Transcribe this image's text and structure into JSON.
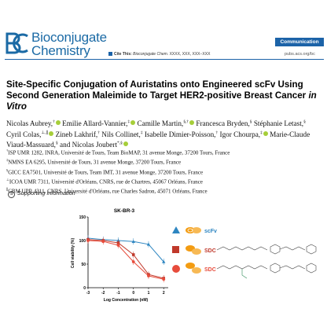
{
  "header": {
    "journal_line1": "Bioconjugate",
    "journal_line2": "Chemistry",
    "badge": "Communication",
    "cite_label": "Cite This:",
    "cite_journal": "Bioconjugate Chem.",
    "cite_ref": "XXXX, XXX, XXX−XXX",
    "site": "pubs.acs.org/bc"
  },
  "title": {
    "main": "Site-Specific Conjugation of Auristatins onto Engineered scFv Using Second Generation Maleimide to Target HER2-positive Breast Cancer",
    "italic_tail": "in Vitro"
  },
  "authors": [
    {
      "name": "Nicolas Aubrey,",
      "sup": "†",
      "orcid": true
    },
    {
      "name": "Emilie Allard-Vannier,",
      "sup": "‡",
      "orcid": true
    },
    {
      "name": "Camille Martin,",
      "sup": "§,†",
      "orcid": true
    },
    {
      "name": "Francesca Bryden,",
      "sup": "§",
      "orcid": false
    },
    {
      "name": "Stéphanie Letast,",
      "sup": "§",
      "orcid": false
    },
    {
      "name": "Cyril Colas,",
      "sup": "⊥,∥",
      "orcid": true
    },
    {
      "name": "Zineb Lakhrif,",
      "sup": "†",
      "orcid": false
    },
    {
      "name": "Nils Collinet,",
      "sup": "‡",
      "orcid": false
    },
    {
      "name": "Isabelle Dimier-Poisson,",
      "sup": "†",
      "orcid": false
    },
    {
      "name": "Igor Chourpa,",
      "sup": "‡",
      "orcid": true
    },
    {
      "name": "Marie-Claude Viaud-Massuard,",
      "sup": "§",
      "orcid": false
    },
    {
      "name": "and Nicolas Joubert",
      "sup": "*,§",
      "orcid": true
    }
  ],
  "affiliations": [
    {
      "sup": "†",
      "text": "ISP UMR 1282, INRA, Université de Tours, Team BioMAP, 31 avenue Monge, 37200 Tours, France"
    },
    {
      "sup": "‡",
      "text": "NMNS EA 6295, Université de Tours, 31 avenue Monge, 37200 Tours, France"
    },
    {
      "sup": "§",
      "text": "GICC EA7501, Université de Tours, Team IMT, 31 avenue Monge, 37200 Tours, France"
    },
    {
      "sup": "⊥",
      "text": "ICOA UMR 7311, Université d'Orléans, CNRS, rue de Chartres, 45067 Orléans, France"
    },
    {
      "sup": "∥",
      "text": "CBM UPR 4311, CNRS, Université d'Orléans, rue Charles Sadron, 45071 Orléans, France"
    }
  ],
  "supporting_info": "Supporting Information",
  "chart_data": {
    "type": "line",
    "title": "SK-BR-3",
    "xlabel": "Log Concentration (nM)",
    "ylabel": "Cell viability (%)",
    "xlim": [
      -3,
      2.3
    ],
    "ylim": [
      0,
      150
    ],
    "xticks": [
      -3,
      -2,
      -1,
      0,
      1,
      2
    ],
    "yticks": [
      0,
      50,
      100,
      150
    ],
    "series": [
      {
        "name": "scFv",
        "color": "#2e86c1",
        "marker": "triangle",
        "x": [
          -3,
          -2,
          -1,
          0,
          1,
          2
        ],
        "y": [
          105,
          102,
          100,
          98,
          92,
          55
        ]
      },
      {
        "name": "SDC",
        "color": "#c0392b",
        "marker": "square",
        "x": [
          -3,
          -2,
          -1,
          0,
          1,
          2
        ],
        "y": [
          102,
          100,
          95,
          70,
          28,
          20
        ]
      },
      {
        "name": "SDC",
        "color": "#e74c3c",
        "marker": "circle",
        "x": [
          -3,
          -2,
          -1,
          0,
          1,
          2
        ],
        "y": [
          100,
          98,
          90,
          55,
          25,
          18
        ]
      }
    ]
  },
  "legend_labels": [
    "scFv",
    "SDC",
    "SDC"
  ],
  "colors": {
    "accent": "#1c63a8",
    "orcid": "#a6ce39"
  }
}
